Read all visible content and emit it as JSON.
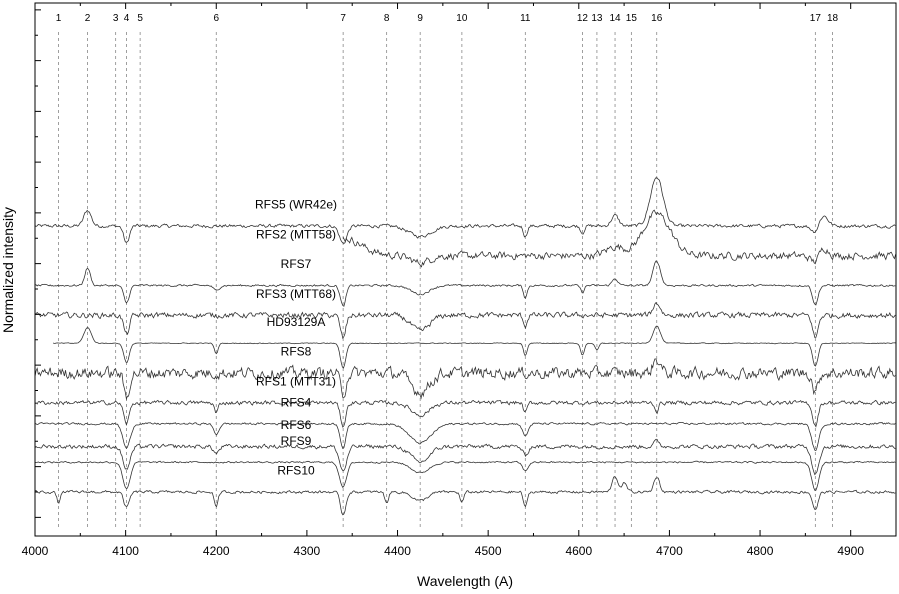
{
  "chart_data": {
    "type": "line",
    "xlabel": "Wavelength (A)",
    "ylabel": "Normalized intensity",
    "xlim": [
      4000,
      4950
    ],
    "x_ticks": [
      4000,
      4100,
      4200,
      4300,
      4400,
      4500,
      4600,
      4700,
      4800,
      4900
    ],
    "x_tick_labels": [
      "4000",
      "4100",
      "4200",
      "4300",
      "4400",
      "4500",
      "4600",
      "4700",
      "4800",
      "4900"
    ],
    "grid": false,
    "legend": "none",
    "line_ids": [
      {
        "num": "1",
        "wavelength": 4026
      },
      {
        "num": "2",
        "wavelength": 4058
      },
      {
        "num": "3",
        "wavelength": 4089
      },
      {
        "num": "4",
        "wavelength": 4101
      },
      {
        "num": "5",
        "wavelength": 4116
      },
      {
        "num": "6",
        "wavelength": 4200
      },
      {
        "num": "7",
        "wavelength": 4340
      },
      {
        "num": "8",
        "wavelength": 4388
      },
      {
        "num": "9",
        "wavelength": 4425
      },
      {
        "num": "10",
        "wavelength": 4471
      },
      {
        "num": "11",
        "wavelength": 4541
      },
      {
        "num": "12",
        "wavelength": 4604
      },
      {
        "num": "13",
        "wavelength": 4620
      },
      {
        "num": "14",
        "wavelength": 4640
      },
      {
        "num": "15",
        "wavelength": 4658
      },
      {
        "num": "16",
        "wavelength": 4686
      },
      {
        "num": "17",
        "wavelength": 4861
      },
      {
        "num": "18",
        "wavelength": 4880
      }
    ],
    "series": [
      {
        "name": "RFS5 (WR42e)",
        "xstart": 4000,
        "offset": 15.2,
        "noise": 0.25,
        "features": [
          [
            4058,
            0.9,
            4
          ],
          [
            4101,
            -1.0,
            3
          ],
          [
            4340,
            -1.0,
            4
          ],
          [
            4425,
            -0.6,
            12
          ],
          [
            4541,
            -0.6,
            2
          ],
          [
            4604,
            -0.4,
            2
          ],
          [
            4640,
            0.6,
            4
          ],
          [
            4686,
            2.8,
            7
          ],
          [
            4861,
            -0.4,
            4
          ],
          [
            4870,
            0.6,
            5
          ]
        ]
      },
      {
        "name": "RFS2 (MTT58)",
        "xstart": 4340,
        "offset": 13.5,
        "noise": 0.55,
        "features": [
          [
            4340,
            1.0,
            20
          ],
          [
            4425,
            -0.4,
            10
          ],
          [
            4640,
            0.5,
            10
          ],
          [
            4686,
            2.4,
            15
          ],
          [
            4861,
            -0.4,
            5
          ],
          [
            4870,
            0.5,
            5
          ]
        ]
      },
      {
        "name": "RFS7",
        "xstart": 4000,
        "offset": 11.8,
        "noise": 0.15,
        "features": [
          [
            4058,
            1.0,
            3
          ],
          [
            4101,
            -1.0,
            3
          ],
          [
            4200,
            -0.3,
            3
          ],
          [
            4340,
            -1.2,
            3
          ],
          [
            4425,
            -0.5,
            10
          ],
          [
            4541,
            -0.7,
            2
          ],
          [
            4604,
            -0.4,
            2
          ],
          [
            4640,
            0.4,
            3
          ],
          [
            4686,
            1.4,
            4
          ],
          [
            4861,
            -1.1,
            3
          ]
        ]
      },
      {
        "name": "RFS3 (MTT68)",
        "xstart": 4000,
        "offset": 10.1,
        "noise": 0.4,
        "features": [
          [
            4101,
            -1.1,
            3
          ],
          [
            4340,
            -1.3,
            3
          ],
          [
            4425,
            -0.9,
            10
          ],
          [
            4541,
            -0.6,
            2
          ],
          [
            4686,
            0.7,
            4
          ],
          [
            4861,
            -1.3,
            3
          ]
        ]
      },
      {
        "name": "HD93129A",
        "xstart": 4020,
        "offset": 8.5,
        "noise": 0.06,
        "features": [
          [
            4058,
            0.9,
            4
          ],
          [
            4101,
            -1.1,
            3
          ],
          [
            4200,
            -0.6,
            2
          ],
          [
            4340,
            -1.4,
            3
          ],
          [
            4541,
            -0.7,
            2
          ],
          [
            4604,
            -0.7,
            2
          ],
          [
            4620,
            -0.4,
            2
          ],
          [
            4686,
            1.0,
            4
          ],
          [
            4861,
            -1.3,
            3
          ]
        ]
      },
      {
        "name": "RFS8",
        "xstart": 4000,
        "offset": 6.8,
        "noise": 0.85,
        "features": [
          [
            4101,
            -1.4,
            3
          ],
          [
            4340,
            -1.2,
            3
          ],
          [
            4425,
            -1.1,
            10
          ],
          [
            4686,
            0.8,
            4
          ],
          [
            4861,
            -1.1,
            3
          ]
        ]
      },
      {
        "name": "RFS1 (MTT31)",
        "xstart": 4000,
        "offset": 5.1,
        "noise": 0.3,
        "features": [
          [
            4101,
            -1.2,
            3
          ],
          [
            4200,
            -0.6,
            2
          ],
          [
            4340,
            -1.3,
            3
          ],
          [
            4425,
            -0.7,
            10
          ],
          [
            4541,
            -0.6,
            2
          ],
          [
            4686,
            -0.5,
            2
          ],
          [
            4861,
            -1.3,
            3
          ]
        ]
      },
      {
        "name": "RFS4",
        "xstart": 4000,
        "offset": 3.9,
        "noise": 0.15,
        "features": [
          [
            4101,
            -1.4,
            4
          ],
          [
            4200,
            -0.6,
            3
          ],
          [
            4340,
            -1.4,
            3
          ],
          [
            4425,
            -1.1,
            12
          ],
          [
            4541,
            -0.7,
            3
          ],
          [
            4861,
            -1.5,
            4
          ]
        ]
      },
      {
        "name": "RFS6",
        "xstart": 4000,
        "offset": 2.6,
        "noise": 0.3,
        "features": [
          [
            4101,
            -1.3,
            4
          ],
          [
            4200,
            -0.4,
            3
          ],
          [
            4340,
            -1.4,
            4
          ],
          [
            4425,
            -0.9,
            10
          ],
          [
            4541,
            -0.5,
            3
          ],
          [
            4686,
            0.3,
            3
          ],
          [
            4861,
            -1.5,
            4
          ]
        ]
      },
      {
        "name": "RFS9",
        "xstart": 4000,
        "offset": 1.7,
        "noise": 0.12,
        "features": [
          [
            4101,
            -1.5,
            4
          ],
          [
            4340,
            -1.4,
            4
          ],
          [
            4425,
            -0.6,
            10
          ],
          [
            4541,
            -0.5,
            3
          ],
          [
            4861,
            -1.6,
            4
          ]
        ]
      },
      {
        "name": "RFS10",
        "xstart": 4000,
        "offset": 0.0,
        "noise": 0.2,
        "features": [
          [
            4026,
            -0.6,
            2
          ],
          [
            4101,
            -0.9,
            3
          ],
          [
            4200,
            -0.9,
            2
          ],
          [
            4340,
            -1.3,
            3
          ],
          [
            4388,
            -0.6,
            2
          ],
          [
            4425,
            -0.5,
            8
          ],
          [
            4471,
            -0.6,
            2
          ],
          [
            4541,
            -0.9,
            2
          ],
          [
            4640,
            0.9,
            3
          ],
          [
            4650,
            0.5,
            3
          ],
          [
            4686,
            0.9,
            3
          ],
          [
            4861,
            -1.0,
            3
          ]
        ]
      }
    ]
  }
}
